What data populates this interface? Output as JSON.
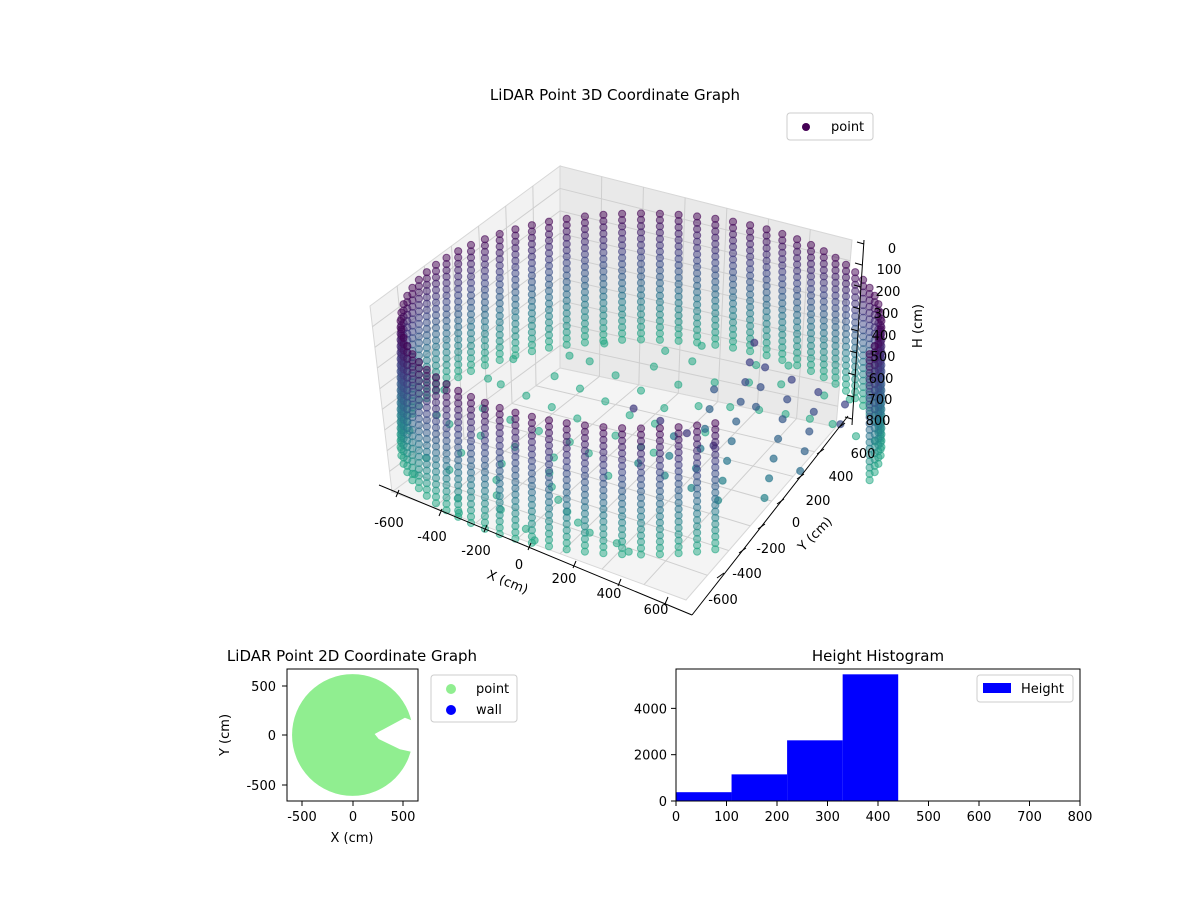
{
  "chart_data": [
    {
      "type": "scatter",
      "projection": "3d",
      "title": "LiDAR Point 3D Coordinate Graph",
      "xlabel": "X (cm)",
      "ylabel": "Y (cm)",
      "zlabel": "H (cm)",
      "xticks": [
        "-600",
        "-400",
        "-200",
        "0",
        "200",
        "400",
        "600"
      ],
      "yticks": [
        "600",
        "400",
        "200",
        "0",
        "-200",
        "-400",
        "-600"
      ],
      "zticks": [
        "0",
        "100",
        "200",
        "300",
        "400",
        "500",
        "600",
        "700",
        "800"
      ],
      "xlim": [
        -650,
        650
      ],
      "ylim": [
        -650,
        650
      ],
      "zlim": [
        0,
        800
      ],
      "z_inverted": true,
      "grid": true,
      "colormap": "viridis",
      "legend": {
        "location": "upper-right",
        "entries": [
          "point"
        ]
      },
      "series": [
        {
          "name": "point",
          "description": "ring of points of radius ~600 cm spanning heights 0–440 cm, floor cluster at ~440 cm, gap on the +X side",
          "radius": 600,
          "h_range": [
            0,
            440
          ]
        }
      ]
    },
    {
      "type": "scatter",
      "title": "LiDAR Point 2D Coordinate Graph",
      "xlabel": "X (cm)",
      "ylabel": "Y (cm)",
      "xticks": [
        "-500",
        "0",
        "500"
      ],
      "yticks": [
        "500",
        "0",
        "-500"
      ],
      "xlim": [
        -650,
        650
      ],
      "ylim": [
        -650,
        650
      ],
      "legend": {
        "location": "outside-right",
        "entries": [
          "point",
          "wall"
        ]
      },
      "series": [
        {
          "name": "point",
          "color": "#90ee90",
          "radius": 600
        },
        {
          "name": "wall",
          "color": "#0000ff"
        }
      ]
    },
    {
      "type": "bar",
      "subtype": "histogram",
      "title": "Height Histogram",
      "xticks": [
        "0",
        "100",
        "200",
        "300",
        "400",
        "500",
        "600",
        "700",
        "800"
      ],
      "yticks": [
        "0",
        "2000",
        "4000"
      ],
      "xlim": [
        0,
        800
      ],
      "ylim": [
        0,
        5700
      ],
      "legend": {
        "location": "top-right",
        "entries": [
          "Height"
        ]
      },
      "series": [
        {
          "name": "Height",
          "color": "#0000ff",
          "bins": [
            [
              0,
              110
            ],
            [
              110,
              220
            ],
            [
              220,
              330
            ],
            [
              330,
              440
            ]
          ],
          "values": [
            380,
            1150,
            2620,
            5470
          ]
        }
      ]
    }
  ]
}
